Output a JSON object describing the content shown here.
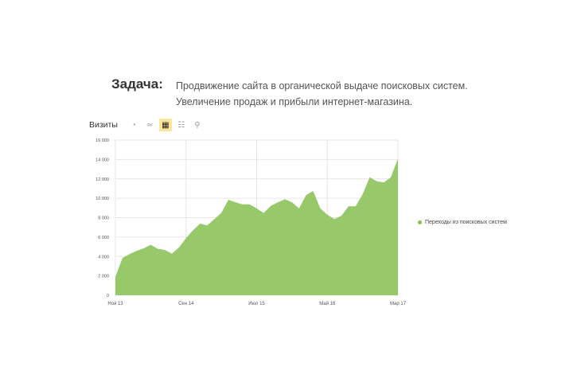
{
  "header": {
    "label": "Задача:",
    "lines": [
      "Продвижение сайта в органической выдаче поисковых систем.",
      "Увеличение продаж и прибыли интернет-магазина."
    ]
  },
  "toolbar": {
    "title": "Визиты",
    "icons": [
      "pie-chart-icon",
      "line-chart-icon",
      "area-chart-icon",
      "bar-chart-icon",
      "map-pin-icon"
    ],
    "active": "area-chart-icon"
  },
  "chart_data": {
    "type": "area",
    "ylim": [
      0,
      16000
    ],
    "yticks": [
      "0",
      "2 000",
      "4 000",
      "6 000",
      "8 000",
      "10 000",
      "12 000",
      "14 000",
      "16 000"
    ],
    "xticks": [
      {
        "index": 0,
        "label": "Ноя 13"
      },
      {
        "index": 10,
        "label": "Сен 14"
      },
      {
        "index": 20,
        "label": "Июл 15"
      },
      {
        "index": 30,
        "label": "Май 16"
      },
      {
        "index": 40,
        "label": "Мар 17"
      }
    ],
    "grid": true,
    "legend_position": "right",
    "series": [
      {
        "name": "Переходы из поисковых систем",
        "color": "#97c96b",
        "values": [
          1900,
          3850,
          4250,
          4570,
          4840,
          5200,
          4790,
          4680,
          4300,
          4920,
          5880,
          6700,
          7390,
          7200,
          7850,
          8480,
          9850,
          9580,
          9380,
          9380,
          8950,
          8480,
          9220,
          9580,
          9900,
          9580,
          8950,
          10320,
          10750,
          8950,
          8300,
          7850,
          8200,
          9170,
          9170,
          10400,
          12170,
          11760,
          11630,
          12170,
          14080
        ]
      }
    ]
  }
}
